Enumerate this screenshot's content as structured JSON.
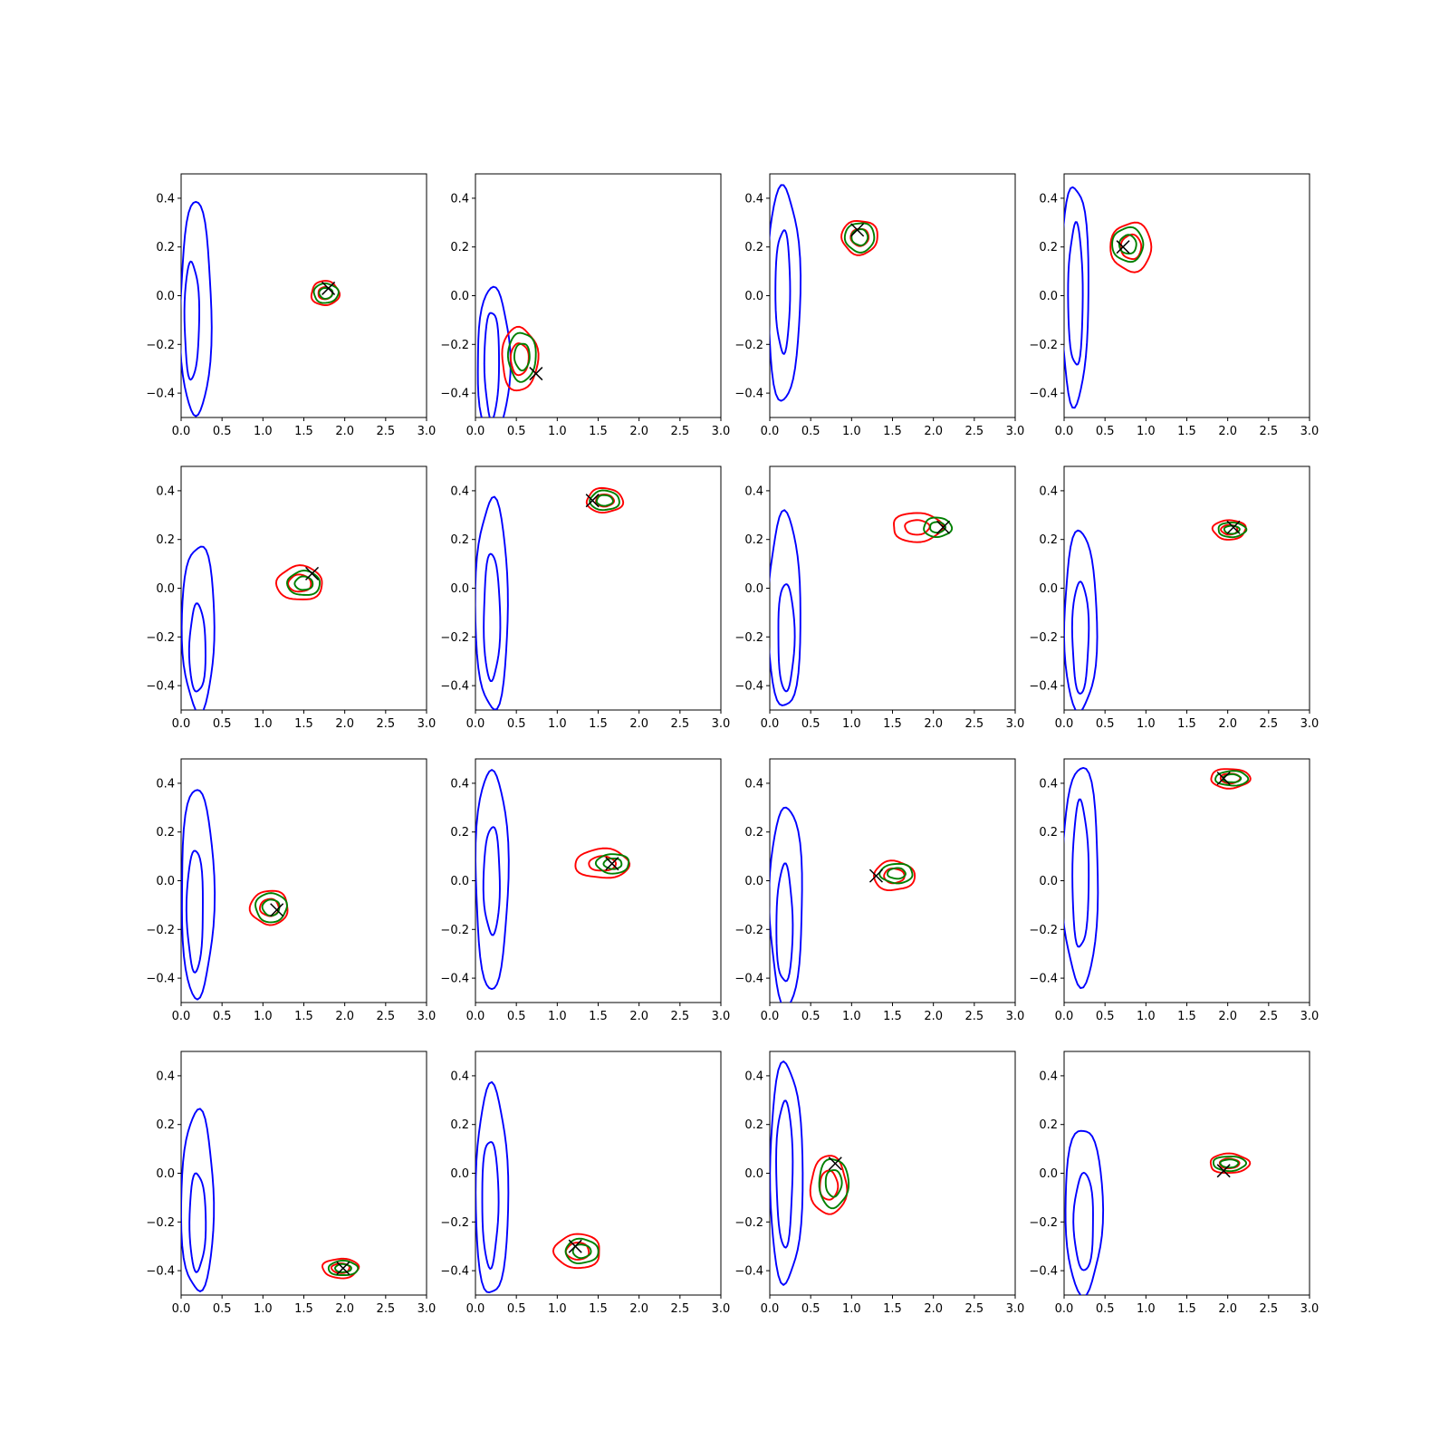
{
  "chart_data": {
    "type": "contour-grid",
    "rows": 4,
    "cols": 4,
    "xlim": [
      0,
      3
    ],
    "ylim": [
      -0.5,
      0.5
    ],
    "x_ticks": [
      "0.0",
      "0.5",
      "1.0",
      "1.5",
      "2.0",
      "2.5",
      "3.0"
    ],
    "x_tick_values": [
      0,
      0.5,
      1.0,
      1.5,
      2.0,
      2.5,
      3.0
    ],
    "y_ticks": [
      "0.4",
      "0.2",
      "0.0",
      "−0.2",
      "−0.4"
    ],
    "y_tick_values": [
      0.4,
      0.2,
      0.0,
      -0.2,
      -0.4
    ],
    "colors": {
      "prior": "#0000ff",
      "posterior_a": "#008000",
      "posterior_b": "#ff0000",
      "truth": "#000000"
    },
    "panels": [
      {
        "blue": {
          "cx": 0.18,
          "cy": -0.07,
          "inner": [
            0.13,
            -0.1,
            0.09,
            0.24
          ],
          "outer": [
            0.18,
            -0.06,
            0.19,
            0.44
          ]
        },
        "green": [
          1.77,
          0.01
        ],
        "red": [
          1.76,
          0.01
        ],
        "gs": 0.13,
        "rs": 0.16,
        "gr": [
          0.15,
          0.04
        ],
        "rr": [
          0.17,
          0.05
        ],
        "truth": [
          1.8,
          0.03
        ]
      },
      {
        "blue": {
          "cx": 0.2,
          "cy": -0.26,
          "inner": [
            0.2,
            -0.28,
            0.09,
            0.22
          ],
          "outer": [
            0.22,
            -0.27,
            0.2,
            0.3
          ]
        },
        "green": [
          0.57,
          -0.25
        ],
        "red": [
          0.54,
          -0.26
        ],
        "gs": 0.13,
        "rs": 0.16,
        "gr": [
          0.17,
          0.1
        ],
        "rr": [
          0.22,
          0.13
        ],
        "truth": [
          0.74,
          -0.32
        ]
      },
      {
        "blue": {
          "cx": 0.18,
          "cy": 0.01,
          "inner": [
            0.16,
            0.02,
            0.09,
            0.25
          ],
          "outer": [
            0.17,
            0.01,
            0.2,
            0.44
          ]
        },
        "green": [
          1.1,
          0.24
        ],
        "red": [
          1.1,
          0.24
        ],
        "gs": 0.13,
        "rs": 0.16,
        "gr": [
          0.18,
          0.06
        ],
        "rr": [
          0.22,
          0.07
        ],
        "truth": [
          1.07,
          0.27
        ]
      },
      {
        "blue": {
          "cx": 0.14,
          "cy": 0.0,
          "inner": [
            0.14,
            0.0,
            0.09,
            0.29
          ],
          "outer": [
            0.13,
            0.01,
            0.17,
            0.45
          ]
        },
        "green": [
          0.78,
          0.21
        ],
        "red": [
          0.82,
          0.2
        ],
        "gs": 0.13,
        "rs": 0.16,
        "gr": [
          0.19,
          0.07
        ],
        "rr": [
          0.25,
          0.1
        ],
        "truth": [
          0.72,
          0.2
        ]
      },
      {
        "blue": {
          "cx": 0.2,
          "cy": -0.17,
          "inner": [
            0.2,
            -0.25,
            0.1,
            0.18
          ],
          "outer": [
            0.21,
            -0.16,
            0.2,
            0.34
          ]
        },
        "green": [
          1.5,
          0.02
        ],
        "red": [
          1.45,
          0.02
        ],
        "gs": 0.13,
        "rs": 0.16,
        "gr": [
          0.2,
          0.05
        ],
        "rr": [
          0.28,
          0.07
        ],
        "truth": [
          1.6,
          0.06
        ]
      },
      {
        "blue": {
          "cx": 0.2,
          "cy": -0.07,
          "inner": [
            0.2,
            -0.12,
            0.1,
            0.26
          ],
          "outer": [
            0.2,
            -0.07,
            0.2,
            0.43
          ]
        },
        "green": [
          1.58,
          0.36
        ],
        "red": [
          1.58,
          0.36
        ],
        "gs": 0.13,
        "rs": 0.16,
        "gr": [
          0.18,
          0.04
        ],
        "rr": [
          0.22,
          0.05
        ],
        "truth": [
          1.43,
          0.36
        ]
      },
      {
        "blue": {
          "cx": 0.18,
          "cy": -0.1,
          "inner": [
            0.2,
            -0.2,
            0.1,
            0.22
          ],
          "outer": [
            0.18,
            -0.1,
            0.2,
            0.4
          ]
        },
        "green": [
          2.05,
          0.25
        ],
        "red": [
          1.8,
          0.25
        ],
        "gs": 0.13,
        "rs": 0.16,
        "gr": [
          0.17,
          0.04
        ],
        "rr": [
          0.3,
          0.06
        ],
        "truth": [
          2.12,
          0.25
        ]
      },
      {
        "blue": {
          "cx": 0.2,
          "cy": -0.14,
          "inner": [
            0.2,
            -0.2,
            0.1,
            0.23
          ],
          "outer": [
            0.2,
            -0.14,
            0.2,
            0.37
          ]
        },
        "green": [
          2.05,
          0.24
        ],
        "red": [
          2.02,
          0.24
        ],
        "gs": 0.13,
        "rs": 0.16,
        "gr": [
          0.17,
          0.03
        ],
        "rr": [
          0.2,
          0.04
        ],
        "truth": [
          2.07,
          0.25
        ]
      },
      {
        "blue": {
          "cx": 0.18,
          "cy": -0.05,
          "inner": [
            0.17,
            -0.12,
            0.1,
            0.25
          ],
          "outer": [
            0.2,
            -0.05,
            0.2,
            0.43
          ]
        },
        "green": [
          1.1,
          -0.11
        ],
        "red": [
          1.08,
          -0.11
        ],
        "gs": 0.13,
        "rs": 0.16,
        "gr": [
          0.19,
          0.06
        ],
        "rr": [
          0.23,
          0.07
        ],
        "truth": [
          1.17,
          -0.12
        ]
      },
      {
        "blue": {
          "cx": 0.2,
          "cy": 0.01,
          "inner": [
            0.2,
            0.0,
            0.1,
            0.22
          ],
          "outer": [
            0.2,
            0.01,
            0.2,
            0.45
          ]
        },
        "green": [
          1.68,
          0.07
        ],
        "red": [
          1.55,
          0.07
        ],
        "gs": 0.13,
        "rs": 0.16,
        "gr": [
          0.2,
          0.04
        ],
        "rr": [
          0.33,
          0.06
        ],
        "truth": [
          1.67,
          0.07
        ]
      },
      {
        "blue": {
          "cx": 0.18,
          "cy": -0.1,
          "inner": [
            0.18,
            -0.18,
            0.1,
            0.24
          ],
          "outer": [
            0.2,
            -0.1,
            0.2,
            0.41
          ]
        },
        "green": [
          1.55,
          0.03
        ],
        "red": [
          1.52,
          0.02
        ],
        "gs": 0.13,
        "rs": 0.16,
        "gr": [
          0.2,
          0.04
        ],
        "rr": [
          0.25,
          0.06
        ],
        "truth": [
          1.3,
          0.02
        ]
      },
      {
        "blue": {
          "cx": 0.2,
          "cy": 0.02,
          "inner": [
            0.2,
            0.02,
            0.1,
            0.3
          ],
          "outer": [
            0.2,
            0.02,
            0.22,
            0.45
          ]
        },
        "green": [
          2.05,
          0.42
        ],
        "red": [
          2.03,
          0.42
        ],
        "gs": 0.13,
        "rs": 0.16,
        "gr": [
          0.2,
          0.03
        ],
        "rr": [
          0.24,
          0.04
        ],
        "truth": [
          1.95,
          0.42
        ]
      },
      {
        "blue": {
          "cx": 0.2,
          "cy": -0.12,
          "inner": [
            0.2,
            -0.2,
            0.1,
            0.2
          ],
          "outer": [
            0.2,
            -0.12,
            0.2,
            0.37
          ]
        },
        "green": [
          1.98,
          -0.39
        ],
        "red": [
          1.95,
          -0.39
        ],
        "gs": 0.13,
        "rs": 0.16,
        "gr": [
          0.18,
          0.03
        ],
        "rr": [
          0.22,
          0.04
        ],
        "truth": [
          1.98,
          -0.39
        ]
      },
      {
        "blue": {
          "cx": 0.18,
          "cy": -0.08,
          "inner": [
            0.18,
            -0.12,
            0.1,
            0.26
          ],
          "outer": [
            0.2,
            -0.08,
            0.2,
            0.43
          ]
        },
        "green": [
          1.3,
          -0.32
        ],
        "red": [
          1.25,
          -0.32
        ],
        "gs": 0.13,
        "rs": 0.16,
        "gr": [
          0.2,
          0.05
        ],
        "rr": [
          0.28,
          0.07
        ],
        "truth": [
          1.22,
          -0.3
        ]
      },
      {
        "blue": {
          "cx": 0.18,
          "cy": 0.0,
          "inner": [
            0.18,
            0.0,
            0.1,
            0.3
          ],
          "outer": [
            0.2,
            0.0,
            0.2,
            0.45
          ]
        },
        "green": [
          0.78,
          -0.04
        ],
        "red": [
          0.72,
          -0.05
        ],
        "gs": 0.13,
        "rs": 0.16,
        "gr": [
          0.18,
          0.1
        ],
        "rr": [
          0.22,
          0.12
        ],
        "truth": [
          0.8,
          0.04
        ]
      },
      {
        "blue": {
          "cx": 0.24,
          "cy": -0.15,
          "inner": [
            0.24,
            -0.2,
            0.12,
            0.2
          ],
          "outer": [
            0.24,
            -0.15,
            0.23,
            0.34
          ]
        },
        "green": [
          2.02,
          0.04
        ],
        "red": [
          2.02,
          0.04
        ],
        "gs": 0.13,
        "rs": 0.16,
        "gr": [
          0.2,
          0.03
        ],
        "rr": [
          0.24,
          0.04
        ],
        "truth": [
          1.95,
          0.01
        ]
      }
    ]
  }
}
